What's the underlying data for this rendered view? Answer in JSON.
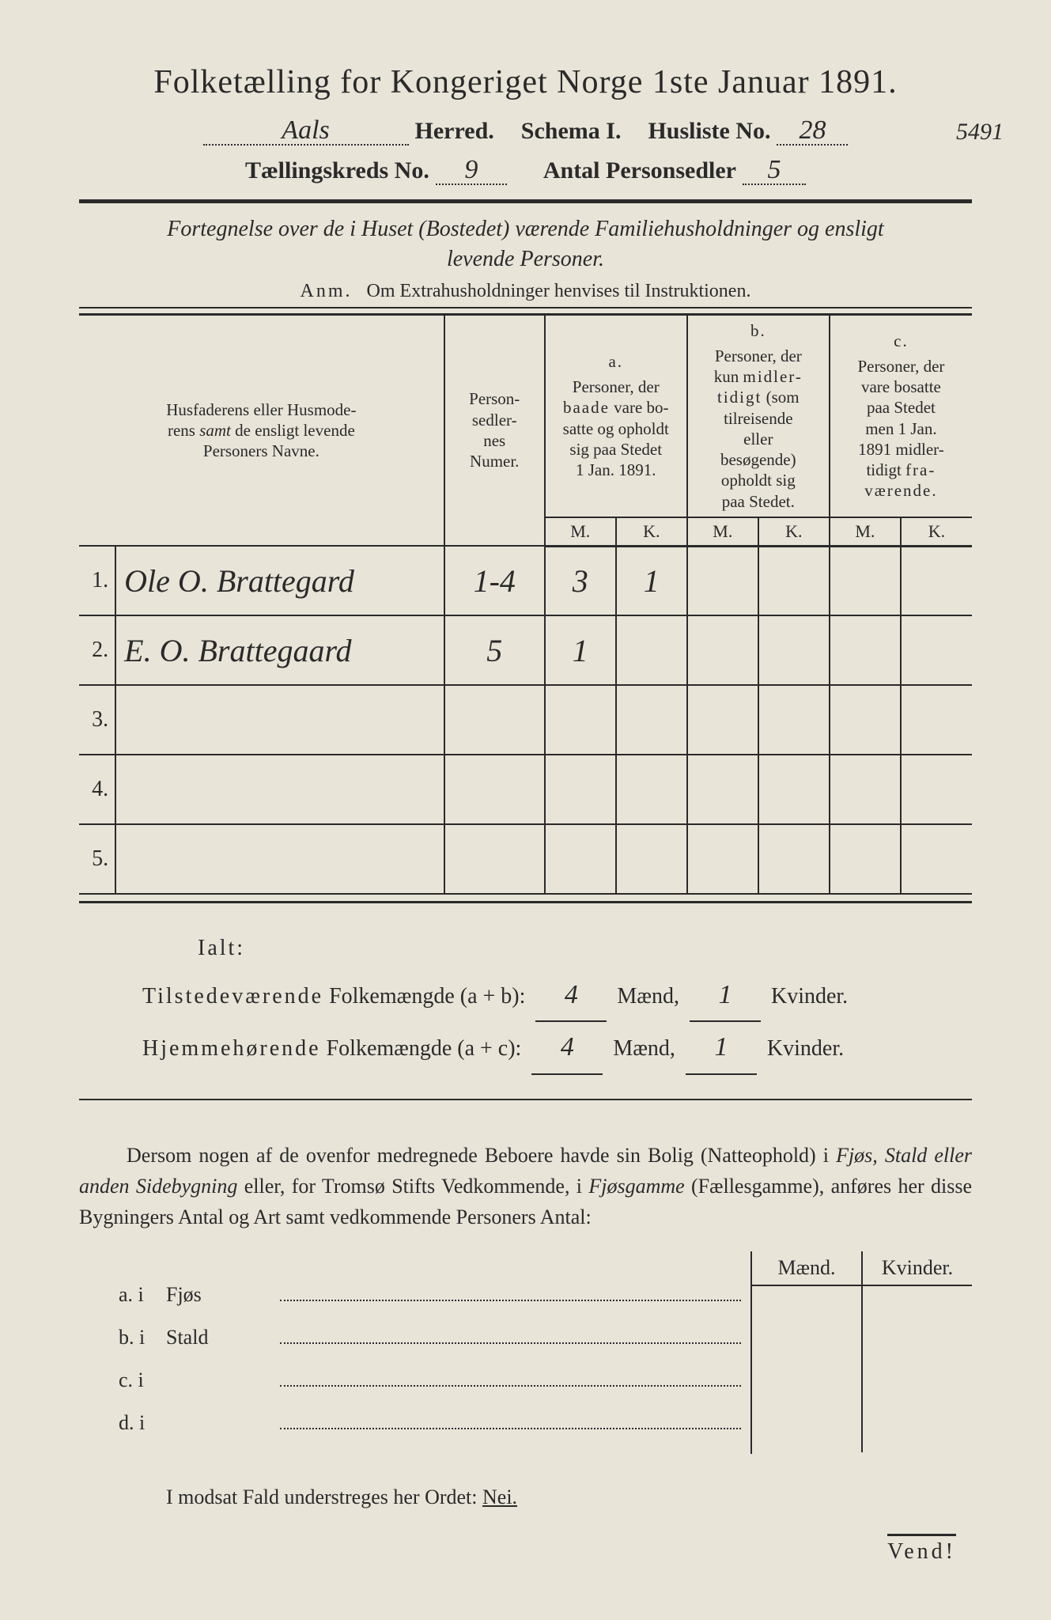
{
  "colors": {
    "paper": "#e8e4d8",
    "ink": "#2a2a2a",
    "handwriting": "#3a3a3a"
  },
  "typography": {
    "print_family": "Georgia, 'Times New Roman', serif",
    "hand_family": "'Brush Script MT', cursive",
    "title_size_pt": 32,
    "header_size_pt": 22,
    "body_size_pt": 20,
    "table_header_size_pt": 16
  },
  "title": "Folketælling for Kongeriget Norge 1ste Januar 1891.",
  "header": {
    "herred_value": "Aals",
    "herred_label": "Herred.",
    "schema_label": "Schema I.",
    "husliste_label": "Husliste No.",
    "husliste_value": "28",
    "side_number": "5491",
    "kreds_label": "Tællingskreds No.",
    "kreds_value": "9",
    "antal_label": "Antal Personsedler",
    "antal_value": "5"
  },
  "intro_line1": "Fortegnelse over de i Huset (Bostedet) værende Familiehusholdninger og ensligt",
  "intro_line2": "levende Personer.",
  "anm_prefix": "Anm.",
  "anm_text": "Om Extrahusholdninger henvises til Instruktionen.",
  "table": {
    "col_name_header": "Husfaderens eller Husmoderens samt de ensligt levende Personers Navne.",
    "col_numer_header": "Personsedlernes Numer.",
    "col_a_label": "a.",
    "col_a_text": "Personer, der baade vare bosatte og opholdt sig paa Stedet 1 Jan. 1891.",
    "col_b_label": "b.",
    "col_b_text": "Personer, der kun midlertidigt (som tilreisende eller besøgende) opholdt sig paa Stedet.",
    "col_c_label": "c.",
    "col_c_text": "Personer, der vare bosatte paa Stedet men 1 Jan. 1891 midlertidigt fraværende.",
    "mk_m": "M.",
    "mk_k": "K.",
    "rows": [
      {
        "n": "1.",
        "name": "Ole O. Brattegard",
        "numer": "1-4",
        "a_m": "3",
        "a_k": "1",
        "b_m": "",
        "b_k": "",
        "c_m": "",
        "c_k": ""
      },
      {
        "n": "2.",
        "name": "E. O. Brattegaard",
        "numer": "5",
        "a_m": "1",
        "a_k": "",
        "b_m": "",
        "b_k": "",
        "c_m": "",
        "c_k": ""
      },
      {
        "n": "3.",
        "name": "",
        "numer": "",
        "a_m": "",
        "a_k": "",
        "b_m": "",
        "b_k": "",
        "c_m": "",
        "c_k": ""
      },
      {
        "n": "4.",
        "name": "",
        "numer": "",
        "a_m": "",
        "a_k": "",
        "b_m": "",
        "b_k": "",
        "c_m": "",
        "c_k": ""
      },
      {
        "n": "5.",
        "name": "",
        "numer": "",
        "a_m": "",
        "a_k": "",
        "b_m": "",
        "b_k": "",
        "c_m": "",
        "c_k": ""
      }
    ]
  },
  "totals": {
    "ialt": "Ialt:",
    "line1_label": "Tilstedeværende",
    "line1_mid": "Folkemængde (a + b):",
    "line2_label": "Hjemmehørende",
    "line2_mid": "Folkemængde (a + c):",
    "maend": "Mænd,",
    "kvinder": "Kvinder.",
    "v1_m": "4",
    "v1_k": "1",
    "v2_m": "4",
    "v2_k": "1"
  },
  "paragraph": "Dersom nogen af de ovenfor medregnede Beboere havde sin Bolig (Natteophold) i Fjøs, Stald eller anden Sidebygning eller, for Tromsø Stifts Vedkommende, i Fjøsgamme (Fællesgamme), anføres her disse Bygningers Antal og Art samt vedkommende Personers Antal:",
  "subtable": {
    "maend": "Mænd.",
    "kvinder": "Kvinder.",
    "rows": [
      {
        "lab": "a. i",
        "word": "Fjøs"
      },
      {
        "lab": "b. i",
        "word": "Stald"
      },
      {
        "lab": "c. i",
        "word": ""
      },
      {
        "lab": "d. i",
        "word": ""
      }
    ]
  },
  "footer": {
    "text_pre": "I modsat Fald understreges her Ordet: ",
    "nei": "Nei."
  },
  "vend": "Vend!"
}
